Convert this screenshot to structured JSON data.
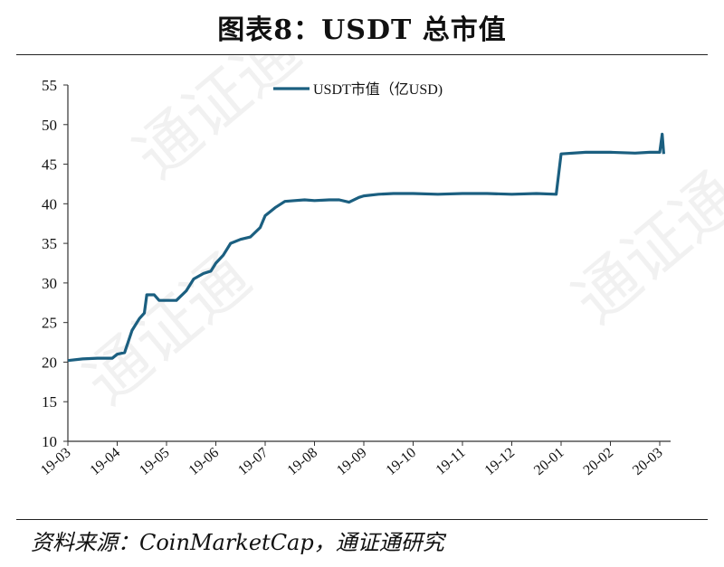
{
  "figure": {
    "title": "图表8：USDT 总市值",
    "source": "资料来源：CoinMarketCap，通证通研究"
  },
  "chart_data": {
    "type": "line",
    "title": "图表8：USDT 总市值",
    "xlabel": "",
    "ylabel": "",
    "ylim": [
      10,
      55
    ],
    "yticks": [
      10,
      15,
      20,
      25,
      30,
      35,
      40,
      45,
      50,
      55
    ],
    "xticks": [
      "19-03",
      "19-04",
      "19-05",
      "19-06",
      "19-07",
      "19-08",
      "19-09",
      "19-10",
      "19-11",
      "19-12",
      "20-01",
      "20-02",
      "20-03"
    ],
    "legend_position": "top-center",
    "grid": false,
    "color": "#1b5f80",
    "series": [
      {
        "name": "USDT市值（亿USD)",
        "points": [
          [
            "19-03",
            20.2
          ],
          [
            "19-03.3",
            20.4
          ],
          [
            "19-03.6",
            20.5
          ],
          [
            "19-03.9",
            20.5
          ],
          [
            "19-04",
            21.0
          ],
          [
            "19-04.15",
            21.2
          ],
          [
            "19-04.3",
            24.0
          ],
          [
            "19-04.45",
            25.5
          ],
          [
            "19-04.55",
            26.2
          ],
          [
            "19-04.6",
            28.5
          ],
          [
            "19-04.75",
            28.5
          ],
          [
            "19-04.85",
            27.8
          ],
          [
            "19-05",
            27.8
          ],
          [
            "19-05.2",
            27.8
          ],
          [
            "19-05.4",
            29.0
          ],
          [
            "19-05.55",
            30.5
          ],
          [
            "19-05.75",
            31.2
          ],
          [
            "19-05.9",
            31.5
          ],
          [
            "19-06",
            32.5
          ],
          [
            "19-06.15",
            33.5
          ],
          [
            "19-06.3",
            35.0
          ],
          [
            "19-06.5",
            35.5
          ],
          [
            "19-06.7",
            35.8
          ],
          [
            "19-06.9",
            37.0
          ],
          [
            "19-07",
            38.5
          ],
          [
            "19-07.2",
            39.5
          ],
          [
            "19-07.4",
            40.3
          ],
          [
            "19-07.6",
            40.4
          ],
          [
            "19-07.8",
            40.5
          ],
          [
            "19-08",
            40.4
          ],
          [
            "19-08.3",
            40.5
          ],
          [
            "19-08.5",
            40.5
          ],
          [
            "19-08.7",
            40.2
          ],
          [
            "19-08.9",
            40.8
          ],
          [
            "19-09",
            41.0
          ],
          [
            "19-09.3",
            41.2
          ],
          [
            "19-09.6",
            41.3
          ],
          [
            "19-10",
            41.3
          ],
          [
            "19-10.5",
            41.2
          ],
          [
            "19-11",
            41.3
          ],
          [
            "19-11.5",
            41.3
          ],
          [
            "19-12",
            41.2
          ],
          [
            "19-12.5",
            41.3
          ],
          [
            "19-12.9",
            41.2
          ],
          [
            "20-01",
            46.3
          ],
          [
            "20-01.5",
            46.5
          ],
          [
            "20-02",
            46.5
          ],
          [
            "20-02.5",
            46.4
          ],
          [
            "20-02.8",
            46.5
          ],
          [
            "20-03",
            46.5
          ],
          [
            "20-03.05",
            48.8
          ],
          [
            "20-03.08",
            46.3
          ]
        ]
      }
    ]
  },
  "watermark": "通证通"
}
